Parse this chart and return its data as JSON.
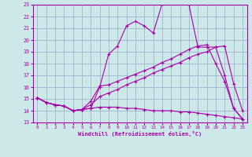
{
  "xlabel": "Windchill (Refroidissement éolien,°C)",
  "bg_color": "#cce8e8",
  "line_color": "#aa00aa",
  "grid_color": "#99aacc",
  "xlim": [
    -0.5,
    23.5
  ],
  "ylim": [
    13,
    23
  ],
  "xticks": [
    0,
    1,
    2,
    3,
    4,
    5,
    6,
    7,
    8,
    9,
    10,
    11,
    12,
    13,
    14,
    15,
    16,
    17,
    18,
    19,
    20,
    21,
    22,
    23
  ],
  "yticks": [
    13,
    14,
    15,
    16,
    17,
    18,
    19,
    20,
    21,
    22,
    23
  ],
  "line1_x": [
    0,
    1,
    2,
    3,
    4,
    5,
    6,
    7,
    8,
    9,
    10,
    11,
    12,
    13,
    14,
    15,
    16,
    17,
    18,
    19,
    20,
    21,
    22,
    23
  ],
  "line1_y": [
    15.1,
    14.7,
    14.5,
    14.4,
    14.0,
    14.1,
    14.2,
    16.0,
    18.8,
    19.5,
    21.2,
    21.6,
    21.2,
    20.6,
    23.1,
    23.2,
    23.2,
    23.0,
    19.4,
    19.4,
    19.4,
    19.5,
    16.3,
    14.0
  ],
  "line2_x": [
    0,
    1,
    2,
    3,
    4,
    5,
    6,
    7,
    8,
    9,
    10,
    11,
    12,
    13,
    14,
    15,
    16,
    17,
    18,
    19,
    20,
    21,
    22,
    23
  ],
  "line2_y": [
    15.1,
    14.7,
    14.5,
    14.4,
    14.0,
    14.1,
    14.5,
    15.2,
    15.5,
    15.8,
    16.2,
    16.5,
    16.8,
    17.2,
    17.5,
    17.8,
    18.1,
    18.5,
    18.8,
    19.0,
    19.4,
    17.0,
    14.2,
    13.3
  ],
  "line3_x": [
    0,
    1,
    2,
    3,
    4,
    5,
    6,
    7,
    8,
    9,
    10,
    11,
    12,
    13,
    14,
    15,
    16,
    17,
    18,
    19,
    20,
    21,
    22,
    23
  ],
  "line3_y": [
    15.1,
    14.7,
    14.5,
    14.4,
    14.0,
    14.1,
    14.2,
    14.3,
    14.3,
    14.3,
    14.2,
    14.2,
    14.1,
    14.0,
    14.0,
    14.0,
    13.9,
    13.9,
    13.8,
    13.7,
    13.6,
    13.5,
    13.4,
    13.3
  ],
  "line4_x": [
    0,
    1,
    2,
    3,
    4,
    5,
    6,
    7,
    8,
    9,
    10,
    11,
    12,
    13,
    14,
    15,
    16,
    17,
    18,
    19,
    20,
    21,
    22,
    23
  ],
  "line4_y": [
    15.1,
    14.7,
    14.5,
    14.4,
    14.0,
    14.1,
    14.8,
    16.1,
    16.2,
    16.5,
    16.8,
    17.1,
    17.4,
    17.7,
    18.1,
    18.4,
    18.8,
    19.2,
    19.5,
    19.6,
    18.0,
    16.5,
    14.2,
    13.3
  ]
}
